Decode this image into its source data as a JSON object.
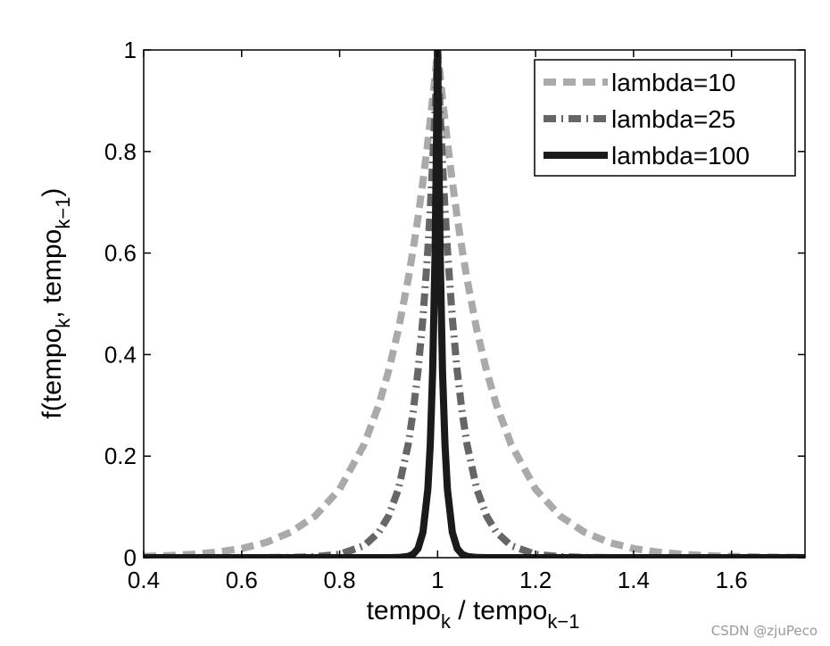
{
  "chart_data": {
    "type": "line",
    "title": "",
    "xlabel": {
      "base": "tempo",
      "sub": "k",
      "middle": " / tempo",
      "sub2": "k−1"
    },
    "ylabel": {
      "p1": "f(tempo",
      "sub1": "k",
      "p2": ", tempo",
      "sub2": "k−1",
      "p3": ")"
    },
    "xlim": [
      0.4,
      1.75
    ],
    "ylim": [
      0,
      1
    ],
    "x_ticks": [
      0.4,
      0.6,
      0.8,
      1.0,
      1.2,
      1.4,
      1.6
    ],
    "x_tick_labels": [
      "0.4",
      "0.6",
      "0.8",
      "1",
      "1.2",
      "1.4",
      "1.6"
    ],
    "y_ticks": [
      0,
      0.2,
      0.4,
      0.6,
      0.8,
      1.0
    ],
    "y_tick_labels": [
      "0",
      "0.2",
      "0.4",
      "0.6",
      "0.8",
      "1"
    ],
    "x_samples": [
      0.4,
      0.45,
      0.5,
      0.55,
      0.6,
      0.65,
      0.7,
      0.75,
      0.8,
      0.85,
      0.88,
      0.9,
      0.92,
      0.94,
      0.95,
      0.96,
      0.97,
      0.98,
      0.985,
      0.99,
      0.995,
      1.0,
      1.005,
      1.01,
      1.015,
      1.02,
      1.03,
      1.04,
      1.05,
      1.06,
      1.08,
      1.1,
      1.12,
      1.15,
      1.2,
      1.25,
      1.3,
      1.35,
      1.4,
      1.45,
      1.5,
      1.55,
      1.6,
      1.65,
      1.7,
      1.75
    ],
    "series": [
      {
        "name": "lambda=10",
        "style": "dashed",
        "color": "#aaaaaa",
        "values": [
          0.0025,
          0.0041,
          0.0067,
          0.011,
          0.018,
          0.03,
          0.05,
          0.082,
          0.135,
          0.223,
          0.301,
          0.368,
          0.449,
          0.549,
          0.607,
          0.67,
          0.741,
          0.819,
          0.861,
          0.905,
          0.951,
          1.0,
          0.951,
          0.905,
          0.861,
          0.819,
          0.741,
          0.67,
          0.607,
          0.549,
          0.449,
          0.368,
          0.301,
          0.223,
          0.135,
          0.082,
          0.05,
          0.03,
          0.018,
          0.011,
          0.0067,
          0.0041,
          0.0025,
          0.0015,
          0.0009,
          0.0006
        ]
      },
      {
        "name": "lambda=25",
        "style": "dashdot",
        "color": "#666666",
        "values": [
          0.0,
          0.0,
          0.0,
          0.0,
          0.0,
          0.0001,
          0.0006,
          0.0019,
          0.0067,
          0.0235,
          0.05,
          0.082,
          0.135,
          0.223,
          0.287,
          0.368,
          0.472,
          0.607,
          0.687,
          0.779,
          0.882,
          1.0,
          0.882,
          0.779,
          0.687,
          0.607,
          0.472,
          0.368,
          0.287,
          0.223,
          0.135,
          0.082,
          0.05,
          0.0235,
          0.0067,
          0.0019,
          0.0006,
          0.0001,
          0.0,
          0.0,
          0.0,
          0.0,
          0.0,
          0.0,
          0.0,
          0.0
        ]
      },
      {
        "name": "lambda=100",
        "style": "solid",
        "color": "#1a1a1a",
        "values": [
          0.0,
          0.0,
          0.0,
          0.0,
          0.0,
          0.0,
          0.0,
          0.0,
          0.0,
          0.0,
          0.0,
          0.0,
          0.0003,
          0.0025,
          0.0067,
          0.018,
          0.05,
          0.135,
          0.223,
          0.368,
          0.607,
          1.0,
          0.607,
          0.368,
          0.223,
          0.135,
          0.05,
          0.018,
          0.0067,
          0.0025,
          0.0003,
          0.0,
          0.0,
          0.0,
          0.0,
          0.0,
          0.0,
          0.0,
          0.0,
          0.0,
          0.0,
          0.0,
          0.0,
          0.0,
          0.0,
          0.0
        ]
      }
    ],
    "legend": {
      "position": "top-right",
      "entries": [
        "lambda=10",
        "lambda=25",
        "lambda=100"
      ]
    }
  },
  "watermark": "CSDN @zjuPeco"
}
